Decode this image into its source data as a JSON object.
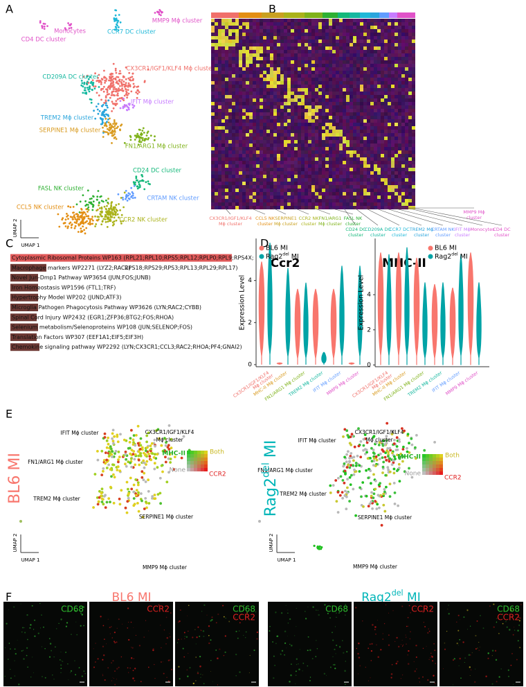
{
  "figure": {
    "panel_labels": [
      "A",
      "B",
      "C",
      "D",
      "E",
      "F"
    ],
    "panel_a": {
      "clusters": [
        {
          "label": "MMP9 Mϕ cluster",
          "color": "#e052c8"
        },
        {
          "label": "CCR7 DC cluster",
          "color": "#1fb8d8"
        },
        {
          "label": "Monocytes",
          "color": "#e052c8"
        },
        {
          "label": "CD4 DC cluster",
          "color": "#e052c8"
        },
        {
          "label": "CX3CR1/IGF1/KLF4 Mϕ cluster",
          "color": "#f0706a"
        },
        {
          "label": "CD209A DC cluster",
          "color": "#16b8a0"
        },
        {
          "label": "IFIT Mϕ cluster",
          "color": "#c77cff"
        },
        {
          "label": "TREM2 Mϕ cluster",
          "color": "#2aa5dc"
        },
        {
          "label": "SERPINE1 Mϕ cluster",
          "color": "#d99b20"
        },
        {
          "label": "FN1/ARG1 Mϕ cluster",
          "color": "#7fb21a"
        },
        {
          "label": "CD24 DC cluster",
          "color": "#14b87a"
        },
        {
          "label": "FASL NK cluster",
          "color": "#2eb032"
        },
        {
          "label": "CRTAM NK cluster",
          "color": "#619cff"
        },
        {
          "label": "CCL5 NK cluster",
          "color": "#e38f14"
        },
        {
          "label": "CCR2 NK cluster",
          "color": "#aab21a"
        }
      ],
      "x_axis": "UMAP 1",
      "y_axis": "UMAP 2"
    },
    "panel_b": {
      "clusters": [
        {
          "lines": [
            "CX3CR1/IGF1/KLF4",
            "Mϕ cluster"
          ],
          "color": "#f0706a"
        },
        {
          "lines": [
            "CCL5 NK",
            "cluster"
          ],
          "color": "#e38f14"
        },
        {
          "lines": [
            "SERPINE1",
            "Mϕ cluster"
          ],
          "color": "#c9a020"
        },
        {
          "lines": [
            "CCR2 NK",
            "cluster"
          ],
          "color": "#aab21a"
        },
        {
          "lines": [
            "FN1/ARG1",
            "Mϕ cluster"
          ],
          "color": "#7fb21a"
        },
        {
          "lines": [
            "FASL NK",
            "cluster"
          ],
          "color": "#2eb032"
        },
        {
          "lines": [
            "CD24 DC",
            "cluster"
          ],
          "color": "#14b87a"
        },
        {
          "lines": [
            "CD209A DC",
            "cluster"
          ],
          "color": "#16b8a0"
        },
        {
          "lines": [
            "CCR7 DC",
            "cluster"
          ],
          "color": "#1fb8d8"
        },
        {
          "lines": [
            "TREM2 Mϕ",
            "cluster"
          ],
          "color": "#2aa5dc"
        },
        {
          "lines": [
            "CRTAM NK",
            "cluster"
          ],
          "color": "#619cff"
        },
        {
          "lines": [
            "IFIT Mϕ",
            "cluster"
          ],
          "color": "#c77cff"
        },
        {
          "lines": [
            "MMP9 Mϕ",
            "cluster"
          ],
          "color": "#e052c8"
        },
        {
          "lines": [
            "Monocytes"
          ],
          "color": "#e052c8"
        },
        {
          "lines": [
            "CD4 DC",
            "cluster"
          ],
          "color": "#e052c8"
        }
      ]
    },
    "panel_c": {
      "terms": [
        "Cytoplasmic Ribosomal Proteins WP163 (RPL21;RPL10;RPS5;RPL12;RPLP0;RPL9;RPS4X;",
        "Macrophage markers WP2271 (LYZ2;RAC2)",
        "Novel Jun-Dmp1 Pathway WP3654 (JUN;FOS;JUNB)",
        "Iron Homeostasis WP1596 (FTL1;TRF)",
        "Hypertrophy Model WP202 (JUND;ATF3)",
        "Microglia Pathogen Phagocytosis Pathway WP3626 (LYN;RAC2;CYBB)",
        "Spinal Cord Injury WP2432 (EGR1;ZFP36;BTG2;FOS;RHOA)",
        "Selenium metabolism/Selenoproteins WP108 (JUN;SELENOP;FOS)",
        "Translation Factors WP307 (EEF1A1;EIF5;EIF3H)",
        "Chemokine signaling pathway WP2292 (LYN;CX3CR1;CCL3;RAC2;RHOA;PF4;GNAI2)"
      ],
      "continuation": "RPS18;RPS29;RPS3;RPL13;RPL29;RPL17)",
      "top_color": "#e05a5a",
      "bar_color": "#6e3a35"
    },
    "panel_d": {
      "categories": [
        {
          "lines": [
            "CX3CR1/IGF1/KLF4",
            "Mϕ cluster"
          ],
          "color": "#f0706a"
        },
        {
          "lines": [
            "MHC-II Mϕ cluster"
          ],
          "color": "#d99b20"
        },
        {
          "lines": [
            "FN1/ARG1 Mϕ cluster"
          ],
          "color": "#7fb21a"
        },
        {
          "lines": [
            "TREM2 Mϕ cluster"
          ],
          "color": "#16b8a0"
        },
        {
          "lines": [
            "IFIT Mϕ cluster"
          ],
          "color": "#619cff"
        },
        {
          "lines": [
            "MMP9 Mϕ cluster"
          ],
          "color": "#e052c8"
        }
      ],
      "plots": [
        {
          "title": "Ccr2",
          "y_label": "Expression Level",
          "ylim": [
            -0.1,
            6
          ],
          "yticks": [
            0,
            2,
            4
          ],
          "legend_position": "top-left",
          "series": [
            {
              "name": "BL6 MI",
              "color": "#f8766d",
              "values": [
                4.9,
                0.1,
                3.6,
                3.6,
                3.6,
                0.1
              ]
            },
            {
              "name": {
                "base": "Rag2",
                "sup": "del",
                "rest": " MI"
              },
              "color": "#00a3a6",
              "values": [
                5.8,
                4.6,
                3.9,
                0.6,
                4.7,
                4.7
              ]
            }
          ]
        },
        {
          "title": "MHC-II",
          "y_label": "Expression Level",
          "ylim": [
            -0.1,
            7.2
          ],
          "yticks": [
            0,
            2,
            4
          ],
          "legend_position": "top-right",
          "series": [
            {
              "name": "BL6 MI",
              "color": "#f8766d",
              "values": [
                6.4,
                6.4,
                6.1,
                4.6,
                4.4,
                6.4
              ]
            },
            {
              "name": {
                "base": "Rag2",
                "sup": "del",
                "rest": " MI"
              },
              "color": "#00a3a6",
              "values": [
                6.3,
                6.7,
                4.7,
                4.7,
                6.3,
                4.7
              ]
            }
          ]
        }
      ]
    },
    "panel_e": {
      "plots": [
        {
          "title": "BL6 MI",
          "color": "#f8766d",
          "labels": [
            [
              "IFIT Mϕ cluster"
            ],
            [
              "CX3CR1/IGF1/KLF4",
              "Mϕ cluster"
            ],
            [
              "FN1/ARG1 Mϕ cluster"
            ],
            [
              "TREM2 Mϕ cluster"
            ],
            [
              "SERPINE1 Mϕ cluster"
            ],
            [
              "MMP9 Mϕ cluster"
            ]
          ],
          "legend": {
            "x_label": "MHC-II",
            "both": "Both",
            "none": "None",
            "y_label": "CCR2"
          },
          "x_axis": "UMAP 1",
          "y_axis": "UMAP 2"
        },
        {
          "title": {
            "base": "Rag2",
            "sup": "del",
            "rest": " MI"
          },
          "color": "#00b5b8",
          "labels": [
            [
              "IFIT Mϕ cluster"
            ],
            [
              "CX3CR1/IGF1/KLF4",
              "Mϕ cluster"
            ],
            [
              "FN1/ARG1 Mϕ cluster"
            ],
            [
              "TREM2 Mϕ cluster"
            ],
            [
              "SERPINE1 Mϕ cluster"
            ],
            [
              "MMP9 Mϕ cluster"
            ]
          ],
          "legend": {
            "x_label": "MHC-II",
            "both": "Both",
            "none": "None",
            "y_label": "CCR2"
          },
          "x_axis": "UMAP 1",
          "y_axis": "UMAP 2"
        }
      ]
    },
    "panel_f": {
      "groups": [
        {
          "title": "BL6 MI",
          "color": "#f8766d",
          "images": [
            [
              "CD68"
            ],
            [
              "CCR2"
            ],
            [
              "CD68",
              "CCR2"
            ]
          ]
        },
        {
          "title": {
            "base": "Rag2",
            "sup": "del",
            "rest": " MI"
          },
          "color": "#00b5b8",
          "images": [
            [
              "CD68"
            ],
            [
              "CCR2"
            ],
            [
              "CD68",
              "CCR2"
            ]
          ]
        }
      ]
    }
  }
}
